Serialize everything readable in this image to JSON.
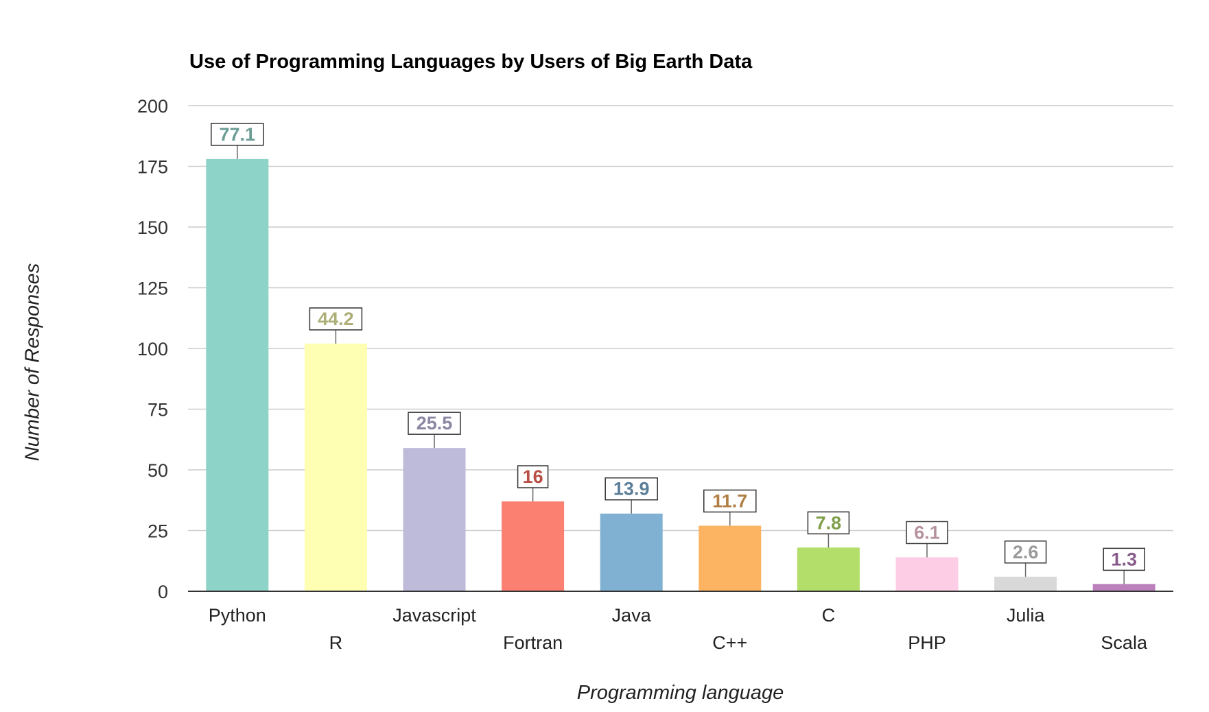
{
  "chart_data": {
    "type": "bar",
    "title": "Use of Programming Languages by Users of Big Earth Data",
    "xlabel": "Programming language",
    "ylabel": "Number of Responses",
    "ylim": [
      0,
      200
    ],
    "yticks": [
      0,
      25,
      50,
      75,
      100,
      125,
      150,
      175,
      200
    ],
    "grid": true,
    "categories": [
      "Python",
      "R",
      "Javascript",
      "Fortran",
      "Java",
      "C++",
      "C",
      "PHP",
      "Julia",
      "Scala"
    ],
    "values": [
      178,
      102,
      59,
      37,
      32,
      27,
      18,
      14,
      6,
      3
    ],
    "data_labels": [
      "77.1",
      "44.2",
      "25.5",
      "16",
      "13.9",
      "11.7",
      "7.8",
      "6.1",
      "2.6",
      "1.3"
    ],
    "colors": [
      "#8dd3c7",
      "#ffffb3",
      "#bebada",
      "#fb8072",
      "#80b1d3",
      "#fdb462",
      "#b3de69",
      "#fccde5",
      "#d9d9d9",
      "#bc80bd"
    ],
    "label_colors": [
      "#6b9d94",
      "#aeae78",
      "#8a87a3",
      "#b94e44",
      "#5b7e98",
      "#b07e42",
      "#7e9e49",
      "#b6929f",
      "#9a9a9a",
      "#87598a"
    ]
  }
}
